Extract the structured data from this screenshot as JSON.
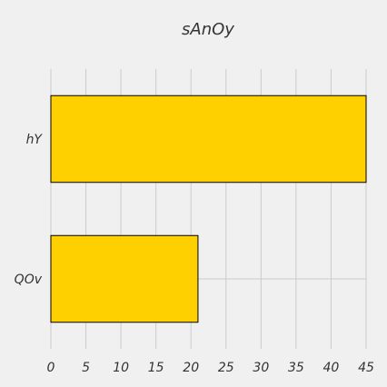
{
  "chart_data": {
    "type": "bar",
    "orientation": "horizontal",
    "title": "sAnOy",
    "categories": [
      "hY",
      "QOv"
    ],
    "values": [
      45,
      21
    ],
    "xlabel": "",
    "ylabel": "",
    "xlim": [
      0,
      45
    ],
    "x_ticks": [
      0,
      5,
      10,
      15,
      20,
      25,
      30,
      35,
      40,
      45
    ],
    "grid": true,
    "bar_color": "#ffd000",
    "bar_edge_color": "#000000",
    "grid_color": "#cbcbcb",
    "background_color": "#f0f0f0"
  }
}
